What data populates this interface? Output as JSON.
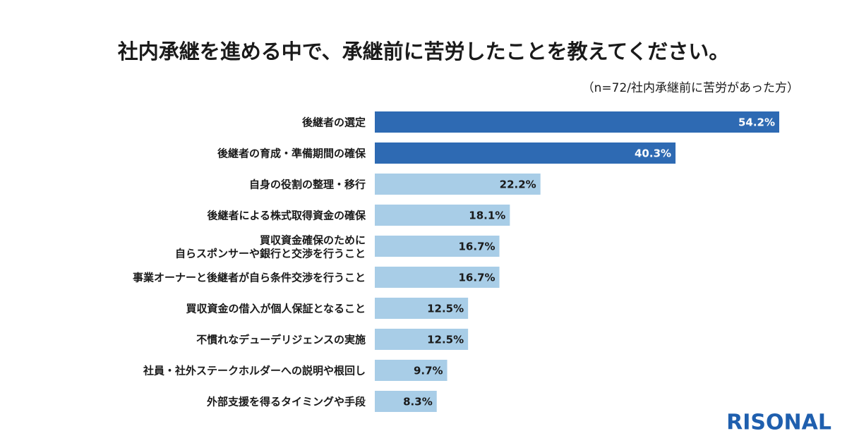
{
  "chart_data": {
    "type": "bar",
    "orientation": "horizontal",
    "title": "社内承継を進める中で、承継前に苦労したことを教えてください。",
    "subtitle": "（n=72/社内承継前に苦労があった方）",
    "categories": [
      "後継者の選定",
      "後継者の育成・準備期間の確保",
      "自身の役割の整理・移行",
      "後継者による株式取得資金の確保",
      "買収資金確保のために\n自らスポンサーや銀行と交渉を行うこと",
      "事業オーナーと後継者が自ら条件交渉を行うこと",
      "買収資金の借入が個人保証となること",
      "不慣れなデューデリジェンスの実施",
      "社員・社外ステークホルダーへの説明や根回し",
      "外部支援を得るタイミングや手段"
    ],
    "values": [
      54.2,
      40.3,
      22.2,
      18.1,
      16.7,
      16.7,
      12.5,
      12.5,
      9.7,
      8.3
    ],
    "value_labels": [
      "54.2%",
      "40.3%",
      "22.2%",
      "18.1%",
      "16.7%",
      "16.7%",
      "12.5%",
      "12.5%",
      "9.7%",
      "8.3%"
    ],
    "colors": [
      "#2e6ab3",
      "#2e6ab3",
      "#a8cde7",
      "#a8cde7",
      "#a8cde7",
      "#a8cde7",
      "#a8cde7",
      "#a8cde7",
      "#a8cde7",
      "#a8cde7"
    ],
    "logo": "RISONAL"
  }
}
